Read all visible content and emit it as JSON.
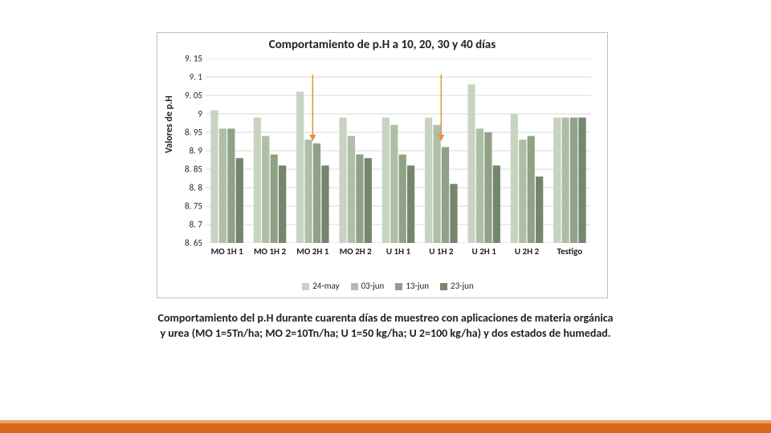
{
  "chart": {
    "type": "bar",
    "title": "Comportamiento de p.H a 10, 20, 30 y 40 días",
    "ylabel": "Valores de p.H",
    "ymin": 8.65,
    "ymax": 9.15,
    "ytick_step": 0.05,
    "yticks": [
      "9. 15",
      "9. 1",
      "9. 05",
      "9",
      "8. 95",
      "8. 9",
      "8. 85",
      "8. 8",
      "8. 75",
      "8. 7",
      "8. 65"
    ],
    "categories": [
      "MO 1H 1",
      "MO 1H 2",
      "MO 2H 1",
      "MO 2H 2",
      "U 1H 1",
      "U 1H 2",
      "U 2H 1",
      "U 2H 2",
      "Testigo"
    ],
    "series": [
      {
        "name": "24-may",
        "color": "#c8d4c1",
        "values": [
          9.01,
          8.99,
          9.06,
          8.99,
          8.99,
          8.99,
          9.08,
          9.0,
          8.99
        ]
      },
      {
        "name": "03-jun",
        "color": "#aebfa6",
        "values": [
          8.96,
          8.94,
          8.93,
          8.94,
          8.97,
          8.97,
          8.96,
          8.93,
          8.99
        ]
      },
      {
        "name": "13-jun",
        "color": "#8fa287",
        "values": [
          8.96,
          8.89,
          8.92,
          8.89,
          8.89,
          8.91,
          8.95,
          8.94,
          8.99
        ]
      },
      {
        "name": "23-jun",
        "color": "#74866c",
        "values": [
          8.88,
          8.86,
          8.86,
          8.88,
          8.86,
          8.81,
          8.86,
          8.83,
          8.99
        ]
      }
    ],
    "grid_color": "#d9d9d9",
    "bg": "#ffffff",
    "arrows": [
      {
        "group_index": 2,
        "color": "#e69138"
      },
      {
        "group_index": 5,
        "color": "#e69138"
      }
    ]
  },
  "caption_line1": "Comportamiento del p.H durante cuarenta días de muestreo con aplicaciones de materia orgánica",
  "caption_line2": "y urea (MO 1=5Tn/ha; MO 2=10Tn/ha; U 1=50 kg/ha; U 2=100 kg/ha) y dos estados de humedad.",
  "footer": {
    "accent": "#d66a1b",
    "accent_light": "#eba26a"
  }
}
